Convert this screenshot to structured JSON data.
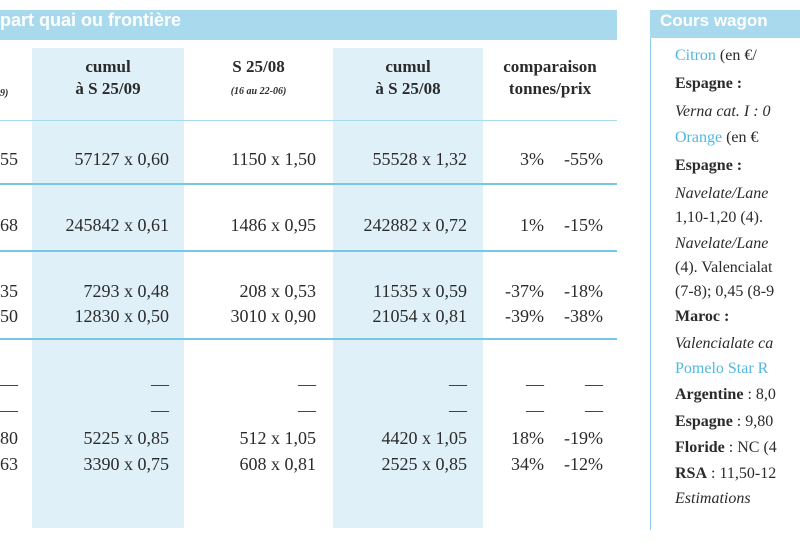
{
  "left_table": {
    "title": "part quai ou frontière",
    "headers": {
      "col0_sub": "9)",
      "col1": [
        "cumul",
        "à S 25/09"
      ],
      "col2": [
        "S 25/08",
        "(16 au 22-06)"
      ],
      "col3": [
        "cumul",
        "à S 25/08"
      ],
      "col4": [
        "comparaison",
        "tonnes/prix"
      ]
    },
    "rows": [
      {
        "c0": "55",
        "c1": "57127 x 0,60",
        "c2": "1150 x 1,50",
        "c3": "55528 x 1,32",
        "c4a": "3%",
        "c4b": "-55%"
      },
      {
        "c0": "68",
        "c1": "245842 x 0,61",
        "c2": "1486 x 0,95",
        "c3": "242882 x 0,72",
        "c4a": "1%",
        "c4b": "-15%"
      },
      {
        "c0": "35",
        "c1": "7293 x 0,48",
        "c2": "208 x 0,53",
        "c3": "11535 x 0,59",
        "c4a": "-37%",
        "c4b": "-18%"
      },
      {
        "c0": "50",
        "c1": "12830 x 0,50",
        "c2": "3010 x 0,90",
        "c3": "21054 x 0,81",
        "c4a": "-39%",
        "c4b": "-38%"
      },
      {
        "c0": "—",
        "c1": "—",
        "c2": "—",
        "c3": "—",
        "c4a": "—",
        "c4b": "—"
      },
      {
        "c0": "—",
        "c1": "—",
        "c2": "—",
        "c3": "—",
        "c4a": "—",
        "c4b": "—"
      },
      {
        "c0": "80",
        "c1": "5225 x 0,85",
        "c2": "512 x 1,05",
        "c3": "4420 x 1,05",
        "c4a": "18%",
        "c4b": "-19%"
      },
      {
        "c0": "63",
        "c1": "3390 x 0,75",
        "c2": "608 x 0,81",
        "c3": "2525 x 0,85",
        "c4a": "34%",
        "c4b": "-12%"
      }
    ]
  },
  "right_panel": {
    "title": "Cours wagon",
    "lines": [
      {
        "text": "Citron",
        "suffix": " (en €/",
        "style": "blue"
      },
      {
        "text": "Espagne :",
        "style": "bold"
      },
      {
        "text": "Verna cat. I : 0",
        "style": "ital"
      },
      {
        "text": "Orange",
        "suffix": " (en €",
        "style": "blue"
      },
      {
        "text": "Espagne :",
        "style": "bold"
      },
      {
        "text": "Navelate/Lane",
        "style": "ital"
      },
      {
        "text": "1,10-1,20 (4).",
        "style": "plain"
      },
      {
        "text": "Navelate/Lane",
        "style": "ital"
      },
      {
        "text": "(4). Valencialat",
        "style": "mixed"
      },
      {
        "text": "(7-8); 0,45 (8-9",
        "style": "plain"
      },
      {
        "text": "Maroc :",
        "style": "bold"
      },
      {
        "text": "Valencialate ca",
        "style": "ital"
      },
      {
        "text": "Pomelo Star R",
        "style": "blue"
      },
      {
        "text": "Argentine",
        "suffix": " : 8,0",
        "style": "boldlead"
      },
      {
        "text": "Espagne",
        "suffix": " : 9,80",
        "style": "boldlead"
      },
      {
        "text": "Floride",
        "suffix": " : NC (4",
        "style": "boldlead"
      },
      {
        "text": "RSA",
        "suffix": " : 11,50-12",
        "style": "boldlead"
      },
      {
        "text": "Estimations",
        "style": "ital"
      }
    ]
  }
}
